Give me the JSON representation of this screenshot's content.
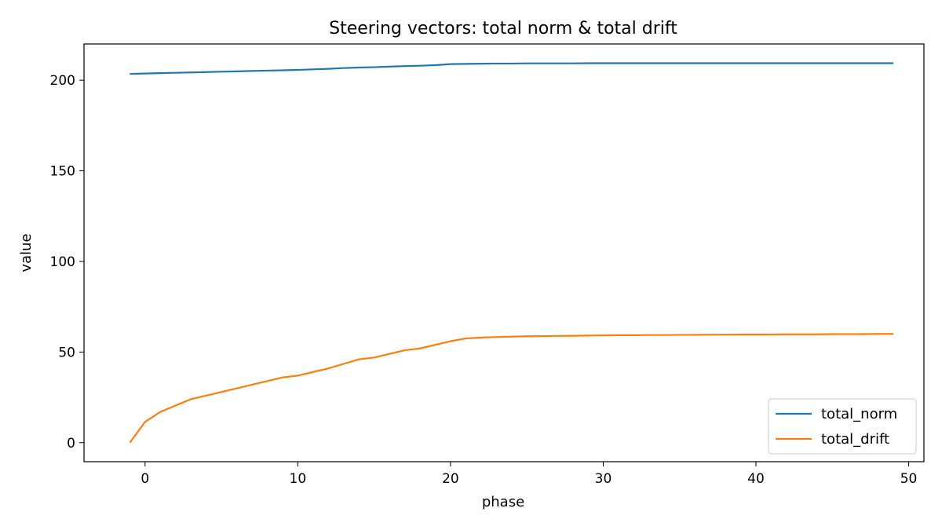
{
  "chart_data": {
    "type": "line",
    "title": "Steering vectors: total norm & total drift",
    "xlabel": "phase",
    "ylabel": "value",
    "xlim": [
      -4,
      51
    ],
    "ylim": [
      -10.5,
      220
    ],
    "xticks": [
      0,
      10,
      20,
      30,
      40,
      50
    ],
    "yticks": [
      0,
      50,
      100,
      150,
      200
    ],
    "grid": false,
    "legend_position": "lower right",
    "x": [
      -1,
      0,
      1,
      2,
      3,
      4,
      5,
      6,
      7,
      8,
      9,
      10,
      11,
      12,
      13,
      14,
      15,
      16,
      17,
      18,
      19,
      20,
      21,
      22,
      23,
      24,
      25,
      26,
      27,
      28,
      29,
      30,
      31,
      32,
      33,
      34,
      35,
      36,
      37,
      38,
      39,
      40,
      41,
      42,
      43,
      44,
      45,
      46,
      47,
      48,
      49
    ],
    "series": [
      {
        "name": "total_norm",
        "color": "#1f77b4",
        "values": [
          203.5,
          203.7,
          203.9,
          204.1,
          204.3,
          204.5,
          204.7,
          204.9,
          205.1,
          205.3,
          205.5,
          205.7,
          206.0,
          206.3,
          206.7,
          207.0,
          207.2,
          207.5,
          207.8,
          208.0,
          208.3,
          208.9,
          209.0,
          209.1,
          209.2,
          209.2,
          209.3,
          209.3,
          209.3,
          209.3,
          209.4,
          209.4,
          209.4,
          209.4,
          209.4,
          209.4,
          209.4,
          209.4,
          209.4,
          209.4,
          209.4,
          209.4,
          209.4,
          209.4,
          209.4,
          209.4,
          209.4,
          209.4,
          209.4,
          209.4,
          209.4
        ]
      },
      {
        "name": "total_drift",
        "color": "#ff7f0e",
        "values": [
          0,
          11.5,
          17,
          20.5,
          24,
          26,
          28,
          30,
          32,
          34,
          36,
          37,
          39,
          41,
          43.5,
          46,
          47,
          49,
          51,
          52,
          54,
          56,
          57.5,
          58,
          58.3,
          58.5,
          58.7,
          58.8,
          58.9,
          59.0,
          59.1,
          59.2,
          59.3,
          59.3,
          59.4,
          59.4,
          59.5,
          59.5,
          59.6,
          59.6,
          59.7,
          59.7,
          59.7,
          59.8,
          59.8,
          59.8,
          59.9,
          59.9,
          59.9,
          60.0,
          60.0
        ]
      }
    ]
  }
}
